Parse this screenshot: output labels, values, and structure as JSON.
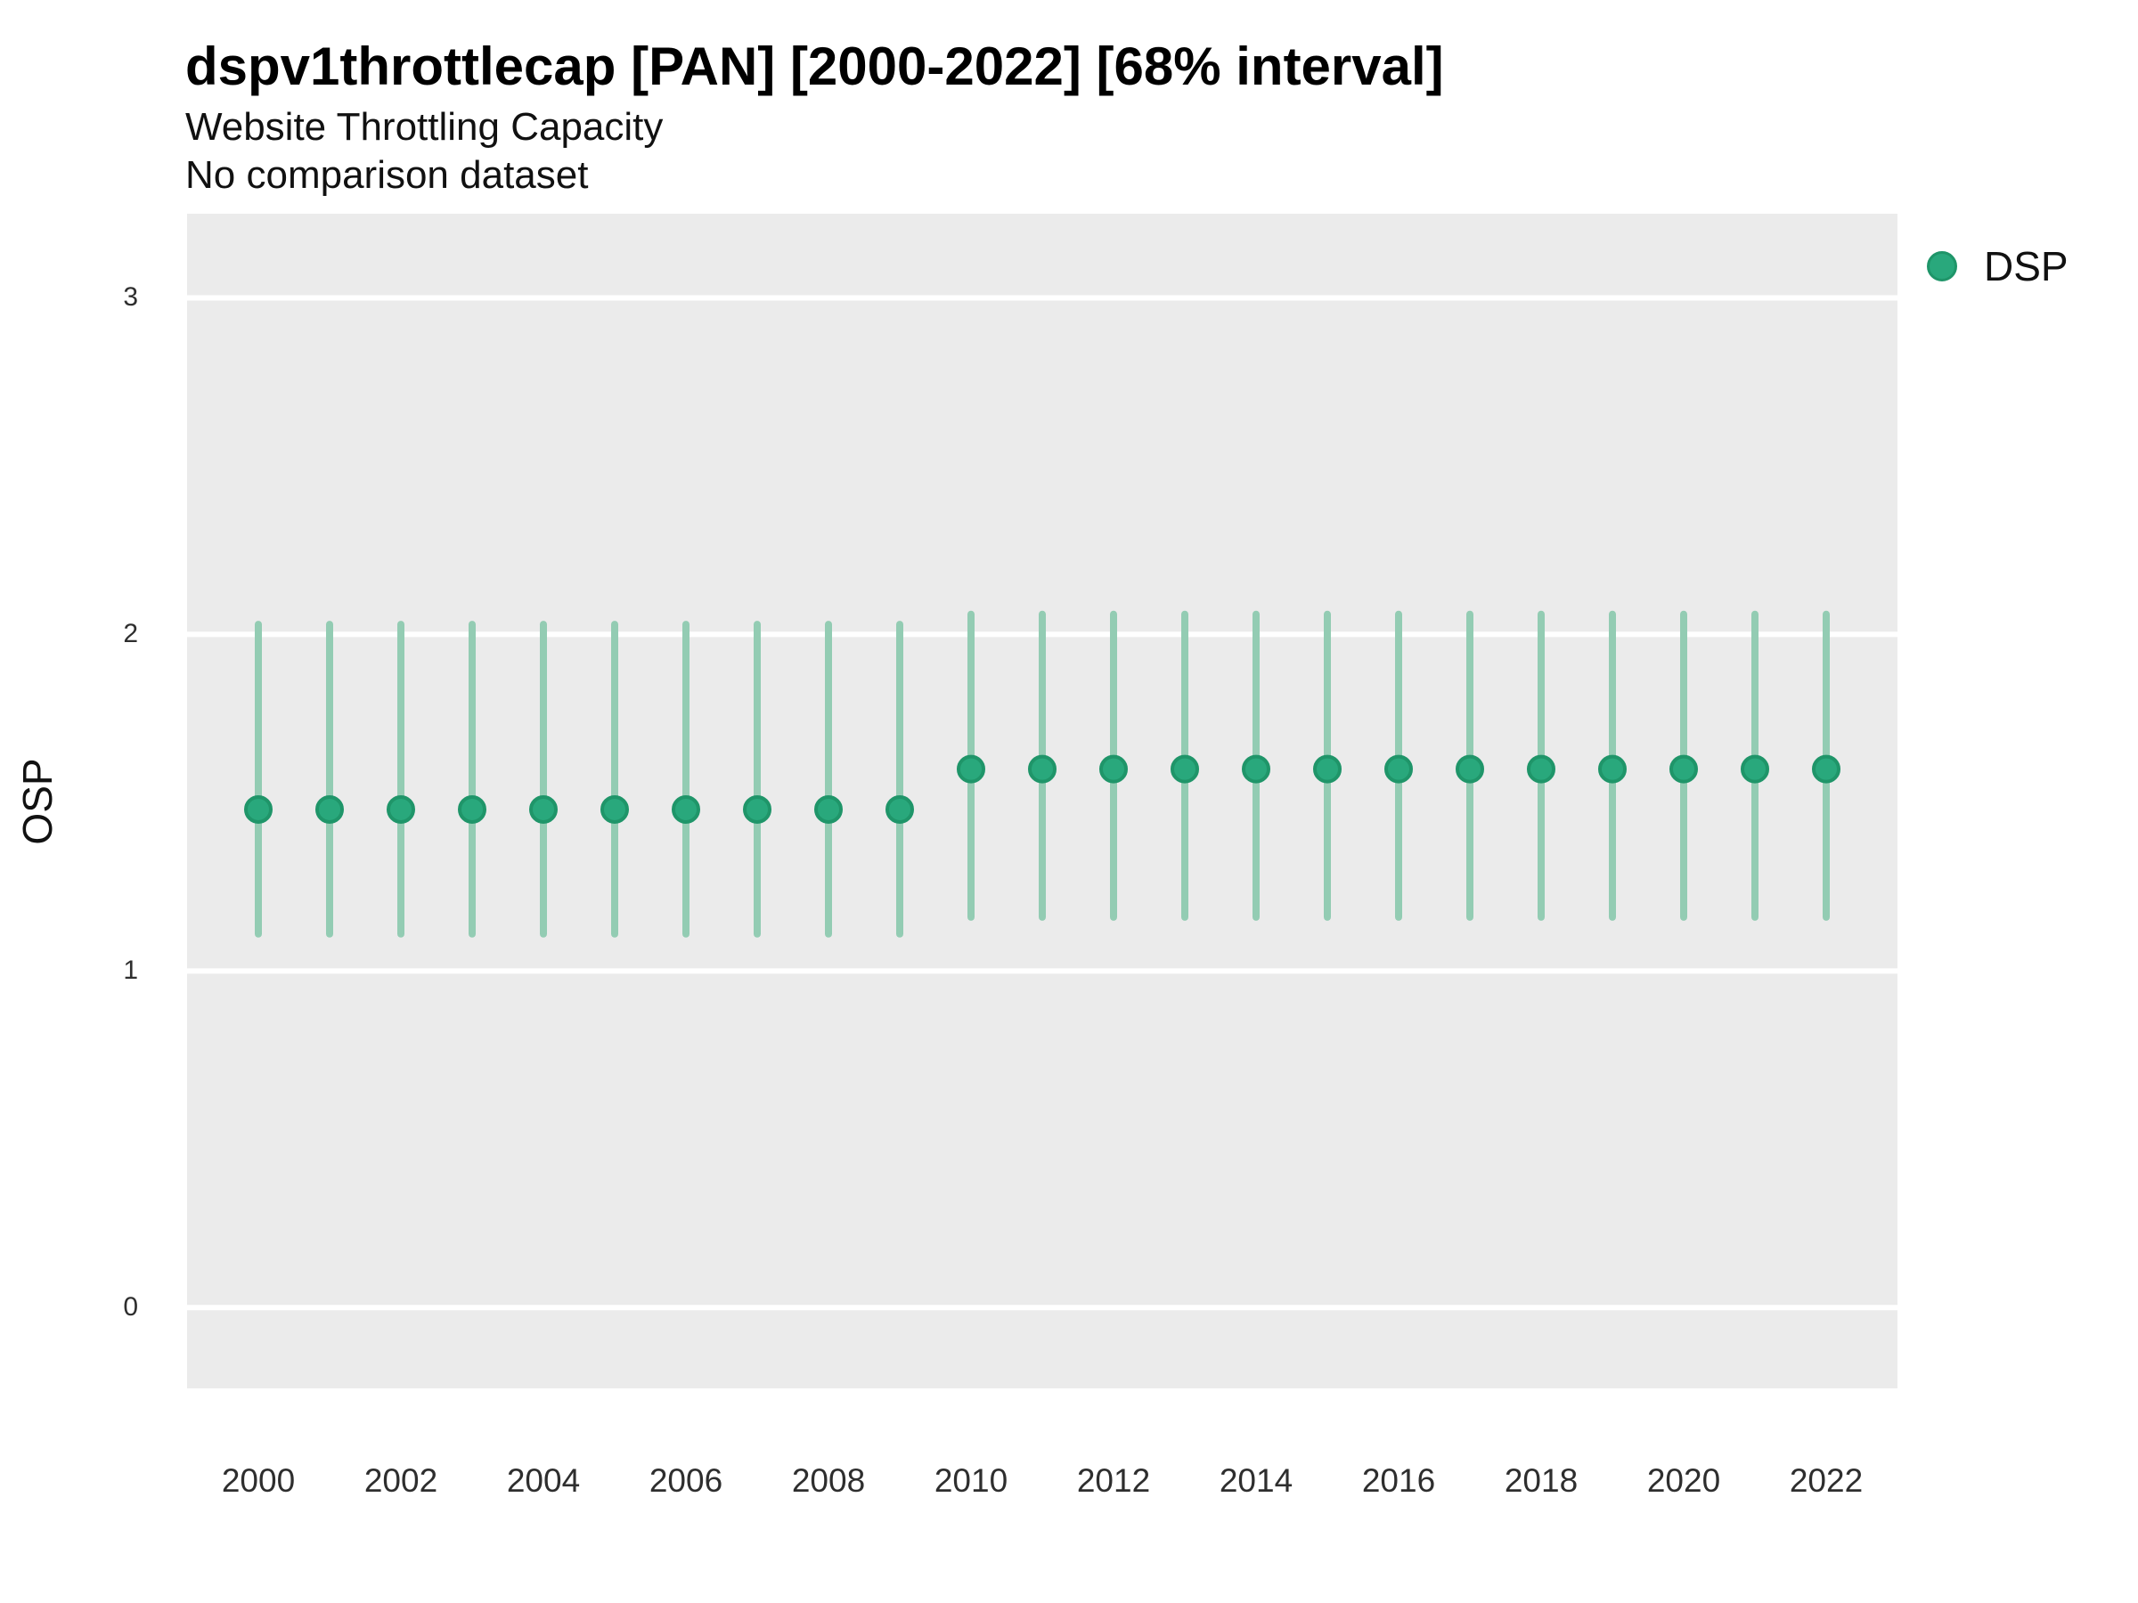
{
  "header": {
    "title": "dspv1throttlecap [PAN] [2000-2022] [68% interval]",
    "subtitle": "Website Throttling Capacity",
    "note": "No comparison dataset"
  },
  "legend": {
    "position": "right-top",
    "items": [
      {
        "label": "DSP",
        "color": "#29a87c",
        "border": "#1f9569"
      }
    ]
  },
  "colors": {
    "panel_background": "#ebebeb",
    "gridline": "#ffffff",
    "interval_bar": "#93ccb3",
    "point_fill": "#29a87c",
    "point_border": "#1f9569",
    "text": "#111111",
    "tick_text": "#2e2e2e"
  },
  "chart_data": {
    "type": "scatter",
    "title": "dspv1throttlecap [PAN] [2000-2022] [68% interval]",
    "subtitle": "Website Throttling Capacity",
    "annotation": "No comparison dataset",
    "xlabel": "",
    "ylabel": "OSP",
    "grid": "horizontal major gridlines, white on gray panel",
    "legend_position": "right",
    "interval": "68%",
    "xlim": [
      1999,
      2023
    ],
    "ylim": [
      -0.24,
      3.25
    ],
    "x_ticks": [
      2000,
      2002,
      2004,
      2006,
      2008,
      2010,
      2012,
      2014,
      2016,
      2018,
      2020,
      2022
    ],
    "y_ticks": [
      0,
      1,
      2,
      3
    ],
    "series": [
      {
        "name": "DSP",
        "points": [
          {
            "x": 2000,
            "y": 1.48,
            "lo": 1.11,
            "hi": 2.03
          },
          {
            "x": 2001,
            "y": 1.48,
            "lo": 1.11,
            "hi": 2.03
          },
          {
            "x": 2002,
            "y": 1.48,
            "lo": 1.11,
            "hi": 2.03
          },
          {
            "x": 2003,
            "y": 1.48,
            "lo": 1.11,
            "hi": 2.03
          },
          {
            "x": 2004,
            "y": 1.48,
            "lo": 1.11,
            "hi": 2.03
          },
          {
            "x": 2005,
            "y": 1.48,
            "lo": 1.11,
            "hi": 2.03
          },
          {
            "x": 2006,
            "y": 1.48,
            "lo": 1.11,
            "hi": 2.03
          },
          {
            "x": 2007,
            "y": 1.48,
            "lo": 1.11,
            "hi": 2.03
          },
          {
            "x": 2008,
            "y": 1.48,
            "lo": 1.11,
            "hi": 2.03
          },
          {
            "x": 2009,
            "y": 1.48,
            "lo": 1.11,
            "hi": 2.03
          },
          {
            "x": 2010,
            "y": 1.6,
            "lo": 1.16,
            "hi": 2.06
          },
          {
            "x": 2011,
            "y": 1.6,
            "lo": 1.16,
            "hi": 2.06
          },
          {
            "x": 2012,
            "y": 1.6,
            "lo": 1.16,
            "hi": 2.06
          },
          {
            "x": 2013,
            "y": 1.6,
            "lo": 1.16,
            "hi": 2.06
          },
          {
            "x": 2014,
            "y": 1.6,
            "lo": 1.16,
            "hi": 2.06
          },
          {
            "x": 2015,
            "y": 1.6,
            "lo": 1.16,
            "hi": 2.06
          },
          {
            "x": 2016,
            "y": 1.6,
            "lo": 1.16,
            "hi": 2.06
          },
          {
            "x": 2017,
            "y": 1.6,
            "lo": 1.16,
            "hi": 2.06
          },
          {
            "x": 2018,
            "y": 1.6,
            "lo": 1.16,
            "hi": 2.06
          },
          {
            "x": 2019,
            "y": 1.6,
            "lo": 1.16,
            "hi": 2.06
          },
          {
            "x": 2020,
            "y": 1.6,
            "lo": 1.16,
            "hi": 2.06
          },
          {
            "x": 2021,
            "y": 1.6,
            "lo": 1.16,
            "hi": 2.06
          },
          {
            "x": 2022,
            "y": 1.6,
            "lo": 1.16,
            "hi": 2.06
          }
        ]
      }
    ]
  }
}
